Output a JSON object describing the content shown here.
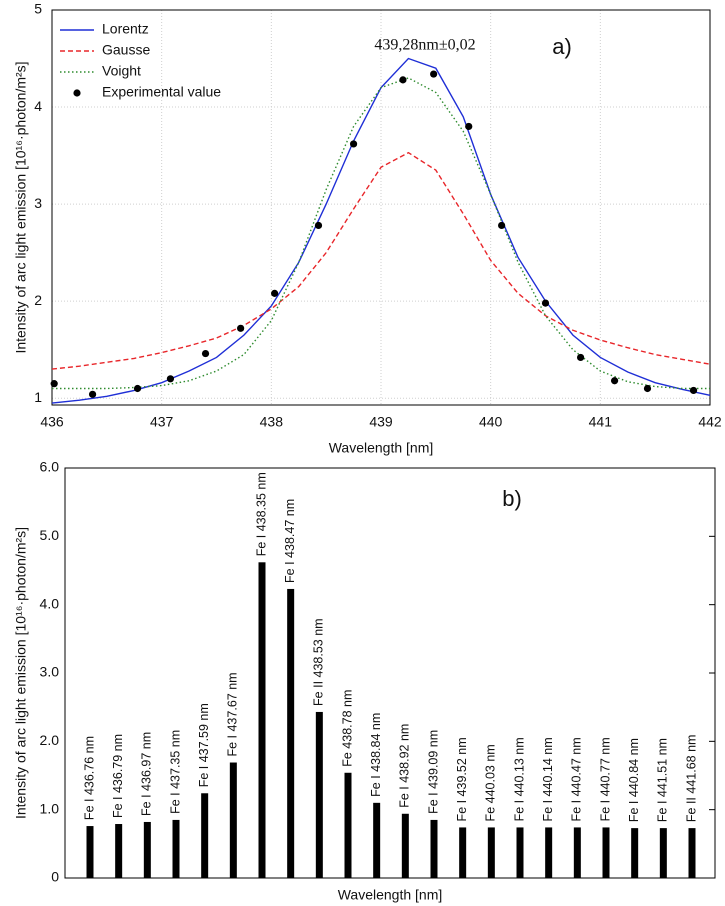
{
  "chart_data": [
    {
      "type": "line",
      "xlabel": "Wavelength [nm]",
      "ylabel": "Intensity of arc light emission [10¹⁶·photon/m²s]",
      "annotations": [
        "439,28nm±0,02",
        "a)"
      ],
      "xlim": [
        436,
        442
      ],
      "xticks": [
        436,
        437,
        438,
        439,
        440,
        441,
        442
      ],
      "ylim": [
        0.93,
        5
      ],
      "yticks": [
        1,
        2,
        3,
        4,
        5
      ],
      "grid": true,
      "legend": "upper left",
      "series": [
        {
          "name": "Lorentz",
          "type": "line",
          "style": "solid",
          "color": "#1f2fd6",
          "x": [
            436,
            436.25,
            436.5,
            436.75,
            437,
            437.25,
            437.5,
            437.75,
            438,
            438.25,
            438.5,
            438.75,
            439,
            439.25,
            439.5,
            439.75,
            440,
            440.25,
            440.5,
            440.75,
            441,
            441.25,
            441.5,
            441.75,
            442
          ],
          "values": [
            0.95,
            0.98,
            1.02,
            1.08,
            1.16,
            1.28,
            1.42,
            1.65,
            1.95,
            2.4,
            3.0,
            3.65,
            4.2,
            4.5,
            4.4,
            3.9,
            3.1,
            2.45,
            2.0,
            1.65,
            1.42,
            1.27,
            1.16,
            1.09,
            1.03
          ]
        },
        {
          "name": "Gausse",
          "type": "line",
          "style": "dashed",
          "color": "#e8262a",
          "x": [
            436,
            436.25,
            436.5,
            436.75,
            437,
            437.25,
            437.5,
            437.75,
            438,
            438.25,
            438.5,
            438.75,
            439,
            439.25,
            439.5,
            439.75,
            440,
            440.25,
            440.5,
            440.75,
            441,
            441.25,
            441.5,
            441.75,
            442
          ],
          "values": [
            1.3,
            1.33,
            1.37,
            1.41,
            1.47,
            1.54,
            1.62,
            1.75,
            1.92,
            2.15,
            2.5,
            2.95,
            3.38,
            3.53,
            3.35,
            2.9,
            2.42,
            2.08,
            1.85,
            1.7,
            1.6,
            1.52,
            1.45,
            1.4,
            1.35
          ]
        },
        {
          "name": "Voight",
          "type": "line",
          "style": "dotted",
          "color": "#2e8b2e",
          "x": [
            436,
            436.25,
            436.5,
            436.75,
            437,
            437.25,
            437.5,
            437.75,
            438,
            438.25,
            438.5,
            438.75,
            439,
            439.25,
            439.5,
            439.75,
            440,
            440.25,
            440.5,
            440.75,
            441,
            441.25,
            441.5,
            441.75,
            442
          ],
          "values": [
            1.1,
            1.1,
            1.1,
            1.11,
            1.13,
            1.18,
            1.28,
            1.45,
            1.8,
            2.4,
            3.15,
            3.8,
            4.2,
            4.3,
            4.15,
            3.75,
            3.1,
            2.4,
            1.85,
            1.5,
            1.28,
            1.17,
            1.12,
            1.1,
            1.1
          ]
        },
        {
          "name": "Experimental value",
          "type": "scatter",
          "color": "#000000",
          "x": [
            436.02,
            436.37,
            436.78,
            437.08,
            437.4,
            437.72,
            438.03,
            438.43,
            438.75,
            439.2,
            439.48,
            439.8,
            440.1,
            440.5,
            440.82,
            441.13,
            441.43,
            441.85
          ],
          "values": [
            1.15,
            1.04,
            1.1,
            1.2,
            1.46,
            1.72,
            2.08,
            2.78,
            3.62,
            4.28,
            4.34,
            3.8,
            2.78,
            1.98,
            1.42,
            1.18,
            1.1,
            1.08
          ]
        }
      ]
    },
    {
      "type": "bar",
      "xlabel": "Wavelength [nm]",
      "ylabel": "Intensity of arc light emission [10¹⁶·photon/m²s]",
      "annotations": [
        "b)"
      ],
      "ylim": [
        0,
        6
      ],
      "yticks": [
        0,
        {
          "value": 1,
          "label": "1.0"
        },
        {
          "value": 2,
          "label": "2.0"
        },
        {
          "value": 3,
          "label": "3.0"
        },
        {
          "value": 4,
          "label": "4.0"
        },
        {
          "value": 5,
          "label": "5.0"
        },
        {
          "value": 6,
          "label": "6.0"
        }
      ],
      "grid": false,
      "color": "#000000",
      "categories": [
        "Fe I 436.76 nm",
        "Fe I 436.79 nm",
        "Fe I 436.97 nm",
        "Fe I 437.35 nm",
        "Fe I 437.59 nm",
        "Fe I 437.67 nm",
        "Fe I 438.35 nm",
        "Fe I 438.47 nm",
        "Fe II 438.53 nm",
        "Fe 438.78 nm",
        "Fe I 438.84 nm",
        "Fe I 438.92 nm",
        "Fe I 439.09 nm",
        "Fe I 439.52 nm",
        "Fe 440.03 nm",
        "Fe I 440.13 nm",
        "Fe I 440.14 nm",
        "Fe I 440.47 nm",
        "Fe I 440.77 nm",
        "Fe I 440.84 nm",
        "Fe I 441.51 nm",
        "Fe II 441.68 nm"
      ],
      "values": [
        0.76,
        0.79,
        0.82,
        0.85,
        1.24,
        1.69,
        4.62,
        4.23,
        2.43,
        1.54,
        1.1,
        0.94,
        0.85,
        0.74,
        0.74,
        0.74,
        0.74,
        0.74,
        0.74,
        0.73,
        0.73,
        0.73
      ]
    }
  ]
}
